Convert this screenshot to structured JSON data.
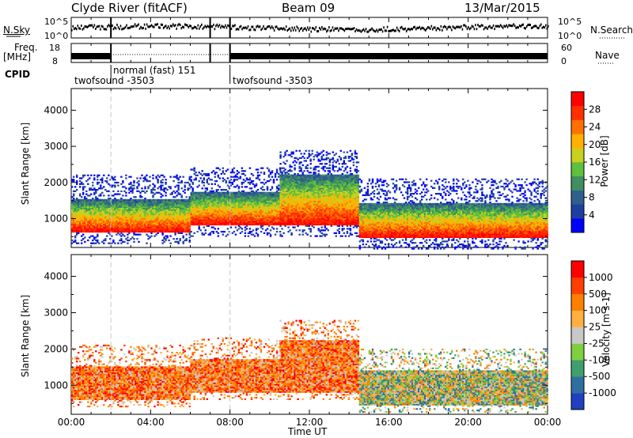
{
  "header": {
    "station": "Clyde River (fitACF)",
    "beam": "Beam 09",
    "date": "13/Mar/2015"
  },
  "strips": {
    "nsky_label": "N.Sky",
    "nsky_ticks": [
      "10^5",
      "10^0"
    ],
    "nsearch_label": "N.Search",
    "nsearch_ticks": [
      "10^5",
      "10^0"
    ],
    "freq_label": "Freq.",
    "freq_unit": "[MHz]",
    "freq_ticks": [
      "18",
      "8"
    ],
    "nave_label": "Nave",
    "nave_ticks": [
      "60",
      "0"
    ],
    "cpid_label": "CPID",
    "cpid_segments": [
      {
        "name": "twofsound -3503",
        "start_hour": 0,
        "end_hour": 2
      },
      {
        "name": "normal (fast) 151",
        "start_hour": 2,
        "end_hour": 8
      },
      {
        "name": "twofsound -3503",
        "start_hour": 8,
        "end_hour": 24
      }
    ]
  },
  "chart_data": [
    {
      "type": "heatmap",
      "panel": "power",
      "ylabel": "Slant Range [km]",
      "xlabel": "",
      "x_range_hours": [
        0,
        24
      ],
      "ylim": [
        200,
        4600
      ],
      "y_ticks": [
        1000,
        2000,
        3000,
        4000
      ],
      "colorbar_label": "Power [dB]",
      "colorbar_ticks": [
        "28",
        "24",
        "20",
        "16",
        "12",
        "8",
        "4"
      ],
      "colorbar_colors": [
        "#0000ff",
        "#1f3fa0",
        "#2f5f8f",
        "#3f8f5f",
        "#5fbf3f",
        "#c8d020",
        "#ffb000",
        "#ff7000",
        "#ff3000",
        "#ff0000"
      ],
      "echo_bands": [
        {
          "start_hour": 0.0,
          "end_hour": 6.0,
          "low_km": 600,
          "high_km": 1500
        },
        {
          "start_hour": 6.0,
          "end_hour": 10.5,
          "low_km": 800,
          "high_km": 1700
        },
        {
          "start_hour": 10.5,
          "end_hour": 14.5,
          "low_km": 800,
          "high_km": 2200
        },
        {
          "start_hour": 14.5,
          "end_hour": 24.0,
          "low_km": 450,
          "high_km": 1400
        }
      ]
    },
    {
      "type": "heatmap",
      "panel": "velocity",
      "ylabel": "Slant Range [km]",
      "xlabel": "Time UT",
      "x_range_hours": [
        0,
        24
      ],
      "x_ticks": [
        "00:00",
        "04:00",
        "08:00",
        "12:00",
        "16:00",
        "20:00",
        "00:00"
      ],
      "ylim": [
        200,
        4600
      ],
      "y_ticks": [
        1000,
        2000,
        3000,
        4000
      ],
      "colorbar_label": "Velocity [m s-1]",
      "colorbar_ticks": [
        "1000",
        "500",
        "100",
        "25",
        "-25",
        "-100",
        "-500",
        "-1000"
      ],
      "colorbar_colors": [
        "#2040c0",
        "#2f6fa0",
        "#3f9f6f",
        "#7fcf3f",
        "#c8c8c8",
        "#ffb040",
        "#ff8000",
        "#ff4000",
        "#ff0000"
      ]
    }
  ]
}
